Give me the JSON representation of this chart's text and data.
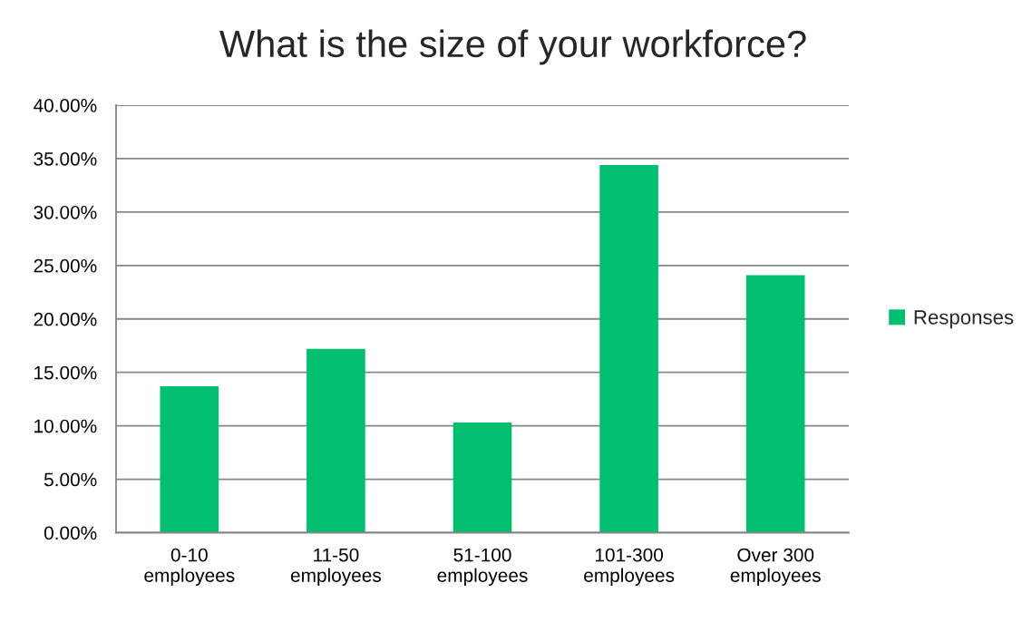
{
  "chart_data": {
    "type": "bar",
    "title": "What is the size of your workforce?",
    "categories": [
      "0-10 employees",
      "11-50 employees",
      "51-100 employees",
      "101-300 employees",
      "Over 300 employees"
    ],
    "series": [
      {
        "name": "Responses",
        "color": "#00bf6f",
        "values": [
          13.7,
          17.2,
          10.3,
          34.4,
          24.1
        ]
      }
    ],
    "ylim": [
      0,
      40
    ],
    "yticks": [
      {
        "value": 0,
        "label": "0.00%"
      },
      {
        "value": 5,
        "label": "5.00%"
      },
      {
        "value": 10,
        "label": "10.00%"
      },
      {
        "value": 15,
        "label": "15.00%"
      },
      {
        "value": 20,
        "label": "20.00%"
      },
      {
        "value": 25,
        "label": "25.00%"
      },
      {
        "value": 30,
        "label": "30.00%"
      },
      {
        "value": 35,
        "label": "35.00%"
      },
      {
        "value": 40,
        "label": "40.00%"
      }
    ],
    "grid": "y",
    "legend": "right"
  }
}
